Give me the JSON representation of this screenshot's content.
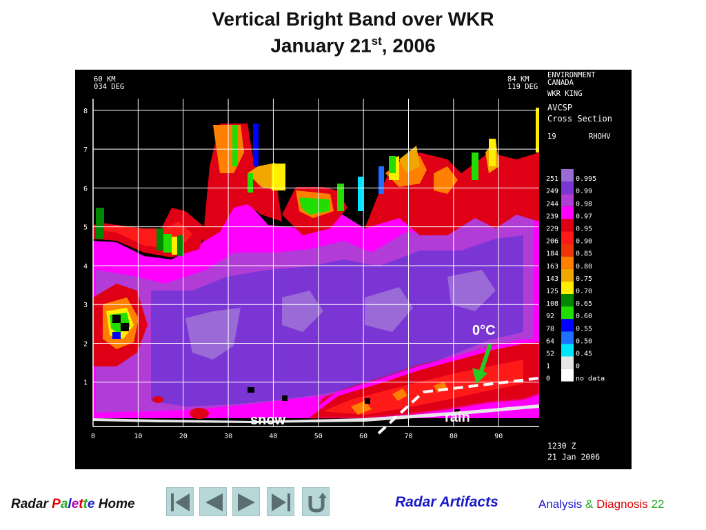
{
  "title": {
    "line1": "Vertical Bright Band over WKR",
    "line2_main": "January 21",
    "line2_sup": "st",
    "line2_end": ", 2006"
  },
  "radar": {
    "range_left_km": "60 KM",
    "range_left_deg": "034 DEG",
    "range_right_km": "84 KM",
    "range_right_deg": "119 DEG",
    "org_line1": "ENVIRONMENT",
    "org_line2": "CANADA",
    "station": "WKR KING",
    "product": "AVCSP",
    "product_type": "Cross Section",
    "level_code": "19",
    "field": "RHOHV",
    "time": "1230 Z",
    "date": "21 Jan 2006",
    "y_ticks": [
      "8",
      "7",
      "6",
      "5",
      "4",
      "3",
      "2",
      "1"
    ],
    "x_ticks": [
      "0",
      "10",
      "20",
      "30",
      "40",
      "50",
      "60",
      "70",
      "80",
      "90"
    ],
    "legend": [
      {
        "code": "251",
        "value": "0.995",
        "color": "#9a6ad6"
      },
      {
        "code": "249",
        "value": "0.99",
        "color": "#7a35d4"
      },
      {
        "code": "244",
        "value": "0.98",
        "color": "#b13cd6"
      },
      {
        "code": "239",
        "value": "0.97",
        "color": "#ff00ff"
      },
      {
        "code": "229",
        "value": "0.95",
        "color": "#e00015"
      },
      {
        "code": "206",
        "value": "0.90",
        "color": "#ff1a1a"
      },
      {
        "code": "184",
        "value": "0.85",
        "color": "#f0340a"
      },
      {
        "code": "163",
        "value": "0.80",
        "color": "#ff7f00"
      },
      {
        "code": "143",
        "value": "0.75",
        "color": "#f0a800"
      },
      {
        "code": "125",
        "value": "0.70",
        "color": "#ffee00"
      },
      {
        "code": "108",
        "value": "0.65",
        "color": "#008800"
      },
      {
        "code": "92",
        "value": "0.60",
        "color": "#22dd00"
      },
      {
        "code": "78",
        "value": "0.55",
        "color": "#0000ff"
      },
      {
        "code": "64",
        "value": "0.50",
        "color": "#1f6fff"
      },
      {
        "code": "52",
        "value": "0.45",
        "color": "#00e5ff"
      },
      {
        "code": "1",
        "value": "0",
        "color": "#e6e6e6"
      },
      {
        "code": "0",
        "value": "no data",
        "color": "#ffffff"
      }
    ]
  },
  "annotations": {
    "freezing_level": "0°C",
    "snow": "snow",
    "rain": "rain",
    "freezing_color": "#ffffff",
    "arrow_color": "#22cc22"
  },
  "footer": {
    "left_radar": "Radar ",
    "left_palette_letters": [
      "P",
      "a",
      "l",
      "e",
      "t",
      "t",
      "e"
    ],
    "left_palette_colors": [
      "#e00000",
      "#22aa22",
      "#1a1ac8",
      "#b000b0",
      "#e00000",
      "#22aa22",
      "#1a1ac8"
    ],
    "left_home": " Home",
    "nav_icons": [
      "skip-first-icon",
      "previous-icon",
      "next-icon",
      "skip-last-icon",
      "return-icon"
    ],
    "section_title": "Radar Artifacts",
    "analysis_word": "Analysis",
    "amp": " & ",
    "diagnosis_word": "Diagnosis",
    "page_number": "22"
  }
}
